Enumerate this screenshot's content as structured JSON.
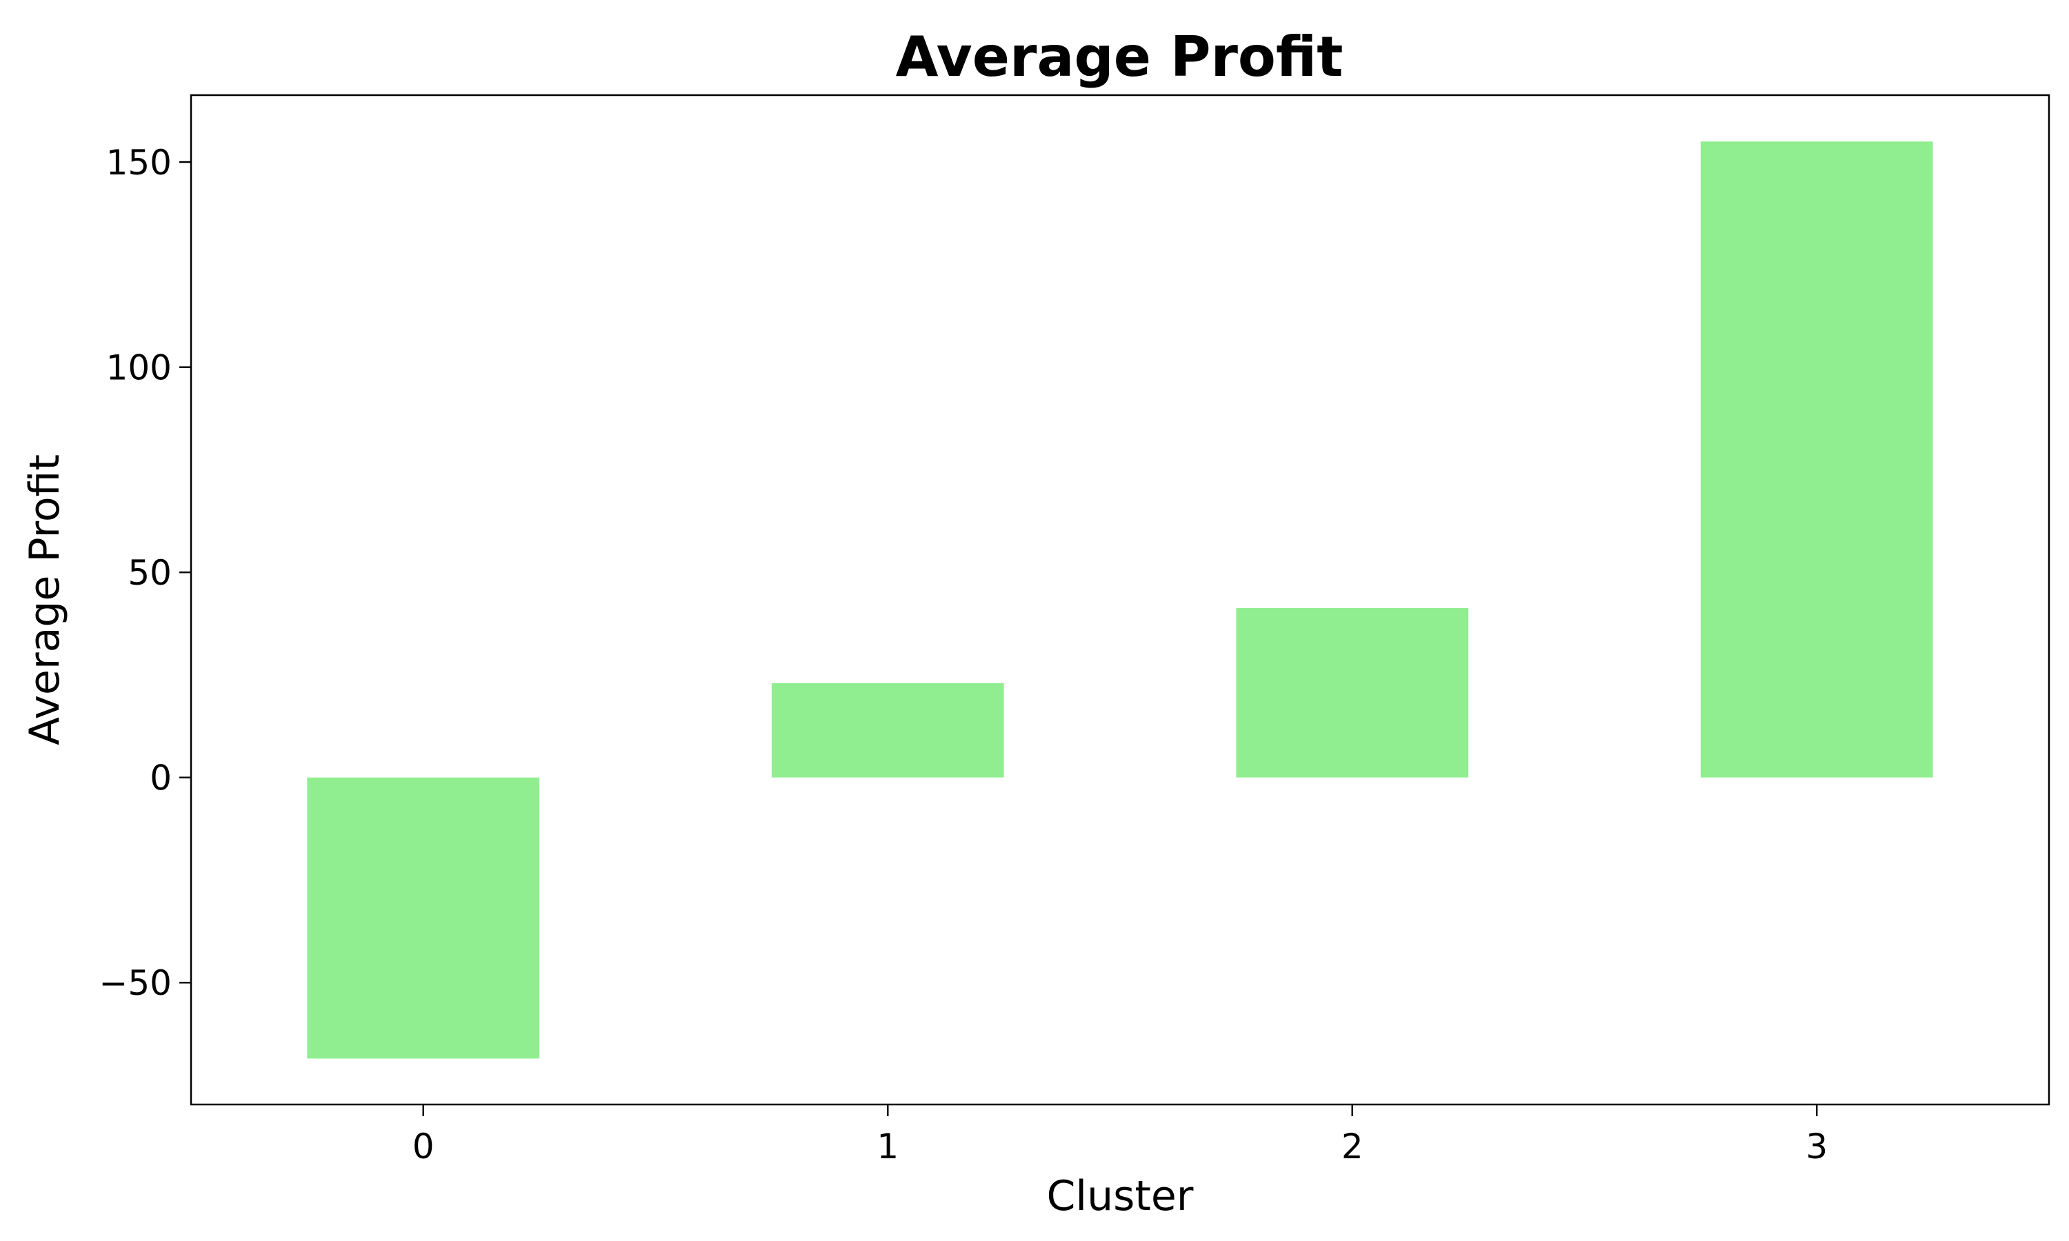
{
  "chart_data": {
    "type": "bar",
    "title": "Average Profit",
    "xlabel": "Cluster",
    "ylabel": "Average Profit",
    "categories": [
      "0",
      "1",
      "2",
      "3"
    ],
    "values": [
      -68.5,
      23.0,
      41.3,
      155.0
    ],
    "ylim": [
      -79.7,
      166.3
    ],
    "yticks": [
      -50,
      0,
      50,
      100,
      150
    ],
    "ytick_labels": [
      "−50",
      "0",
      "50",
      "100",
      "150"
    ],
    "grid": false,
    "legend": "none",
    "bar_color": "#90EE90"
  }
}
